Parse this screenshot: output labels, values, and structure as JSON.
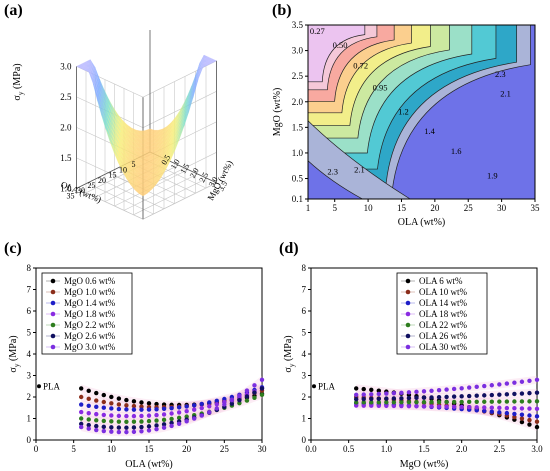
{
  "panels": {
    "a": "(a)",
    "b": "(b)",
    "c": "(c)",
    "d": "(d)"
  },
  "chart_data": [
    {
      "id": "a",
      "type": "surface",
      "zlabel": "σ_y (MPa)",
      "xlabel": "OLA (wt%)",
      "ylabel": "MgO (wt%)",
      "z_ticks": [
        "1.0",
        "1.5",
        "2.0",
        "2.5",
        "3.0"
      ],
      "x_ticks": [
        "5",
        "10",
        "15",
        "20",
        "25",
        "30",
        "35"
      ],
      "y_ticks": [
        "0.5",
        "1.0",
        "1.5",
        "2.0",
        "2.5",
        "3.0",
        "3.5"
      ]
    },
    {
      "id": "b",
      "type": "contour",
      "xlabel": "OLA (wt%)",
      "ylabel": "MgO (wt%)",
      "xlim": [
        1,
        35
      ],
      "ylim": [
        0.1,
        3.5
      ],
      "x_ticks": [
        "1",
        "5",
        "10",
        "15",
        "20",
        "25",
        "30",
        "35"
      ],
      "y_ticks": [
        "0.1",
        "0.5",
        "1.0",
        "1.5",
        "2.0",
        "2.5",
        "3.0",
        "3.5"
      ],
      "contour_levels": [
        "0.27",
        "0.50",
        "0.72",
        "0.95",
        "1.2",
        "1.4",
        "1.6",
        "1.9",
        "2.1",
        "2.3"
      ],
      "level_labels": [
        {
          "text": "0.27",
          "x": 2.4,
          "y": 3.32
        },
        {
          "text": "0.50",
          "x": 5.8,
          "y": 3.05
        },
        {
          "text": "0.72",
          "x": 8.9,
          "y": 2.65
        },
        {
          "text": "0.95",
          "x": 11.8,
          "y": 2.22
        },
        {
          "text": "1.2",
          "x": 15.3,
          "y": 1.75
        },
        {
          "text": "1.4",
          "x": 19.2,
          "y": 1.37
        },
        {
          "text": "1.6",
          "x": 23.2,
          "y": 0.98
        },
        {
          "text": "1.9",
          "x": 28.6,
          "y": 0.5
        },
        {
          "text": "2.1",
          "x": 30.6,
          "y": 2.1
        },
        {
          "text": "2.3",
          "x": 29.8,
          "y": 2.48
        },
        {
          "text": "2.3",
          "x": 4.7,
          "y": 0.58
        },
        {
          "text": "2.1",
          "x": 8.7,
          "y": 0.62
        }
      ]
    },
    {
      "id": "c",
      "type": "scatter",
      "ylabel": "σ_y (MPa)",
      "xlabel": "OLA (wt%)",
      "xlim": [
        0,
        30
      ],
      "ylim": [
        0,
        8
      ],
      "x_ticks": [
        "0",
        "5",
        "10",
        "15",
        "20",
        "25",
        "30"
      ],
      "y_ticks": [
        "0",
        "1",
        "2",
        "3",
        "4",
        "5",
        "6",
        "7",
        "8"
      ],
      "annotation": "PLA",
      "reference_point": {
        "x": 0,
        "y": 2.5
      },
      "x": [
        6,
        7,
        8,
        9,
        10,
        11,
        12,
        13,
        14,
        15,
        16,
        17,
        18,
        19,
        20,
        21,
        22,
        23,
        24,
        25,
        26,
        27,
        28,
        29,
        30
      ],
      "series": [
        {
          "name": "MgO 0.6 wt%",
          "color": "#000000",
          "start": 2.4,
          "end": 2.15,
          "min": 1.6
        },
        {
          "name": "MgO 1.0 wt%",
          "color": "#8b2d1a",
          "start": 2.0,
          "end": 2.3,
          "min": 1.5
        },
        {
          "name": "MgO 1.4 wt%",
          "color": "#1e1ec8",
          "start": 1.65,
          "end": 2.45,
          "min": 1.45
        },
        {
          "name": "MgO 1.8 wt%",
          "color": "#8a2be2",
          "start": 1.3,
          "end": 2.4,
          "min": 1.2
        },
        {
          "name": "MgO 2.2 wt%",
          "color": "#2e7d1e",
          "start": 1.0,
          "end": 2.1,
          "min": 0.95
        },
        {
          "name": "MgO 2.6 wt%",
          "color": "#101060",
          "start": 0.75,
          "end": 2.4,
          "min": 0.75
        },
        {
          "name": "MgO 3.0 wt%",
          "color": "#7b2fe0",
          "start": 0.6,
          "end": 2.8,
          "min": 0.6
        }
      ]
    },
    {
      "id": "d",
      "type": "scatter",
      "ylabel": "σ_y (MPa)",
      "xlabel": "MgO (wt%)",
      "xlim": [
        0,
        3
      ],
      "ylim": [
        0,
        8
      ],
      "x_ticks": [
        "0.0",
        "0.5",
        "1.0",
        "1.5",
        "2.0",
        "2.5",
        "3.0"
      ],
      "y_ticks": [
        "0",
        "1",
        "2",
        "3",
        "4",
        "5",
        "6",
        "7",
        "8"
      ],
      "annotation": "PLA",
      "reference_point": {
        "x": 0,
        "y": 2.5
      },
      "x": [
        0.6,
        0.7,
        0.8,
        0.9,
        1.0,
        1.1,
        1.2,
        1.3,
        1.4,
        1.5,
        1.6,
        1.7,
        1.8,
        1.9,
        2.0,
        2.1,
        2.2,
        2.3,
        2.4,
        2.5,
        2.6,
        2.7,
        2.8,
        2.9,
        3.0
      ],
      "series": [
        {
          "name": "OLA   6 wt%",
          "color": "#000000",
          "start": 2.4,
          "end": 0.6
        },
        {
          "name": "OLA 10 wt%",
          "color": "#8b2d1a",
          "start": 2.0,
          "end": 0.85
        },
        {
          "name": "OLA 14 wt%",
          "color": "#1e1ec8",
          "start": 1.7,
          "end": 1.1
        },
        {
          "name": "OLA 18 wt%",
          "color": "#8a2be2",
          "start": 1.6,
          "end": 1.45
        },
        {
          "name": "OLA 22 wt%",
          "color": "#2e7d1e",
          "start": 1.75,
          "end": 1.8
        },
        {
          "name": "OLA 26 wt%",
          "color": "#101060",
          "start": 1.9,
          "end": 2.2
        },
        {
          "name": "OLA 30 wt%",
          "color": "#7b2fe0",
          "start": 2.1,
          "end": 2.8
        }
      ]
    }
  ]
}
